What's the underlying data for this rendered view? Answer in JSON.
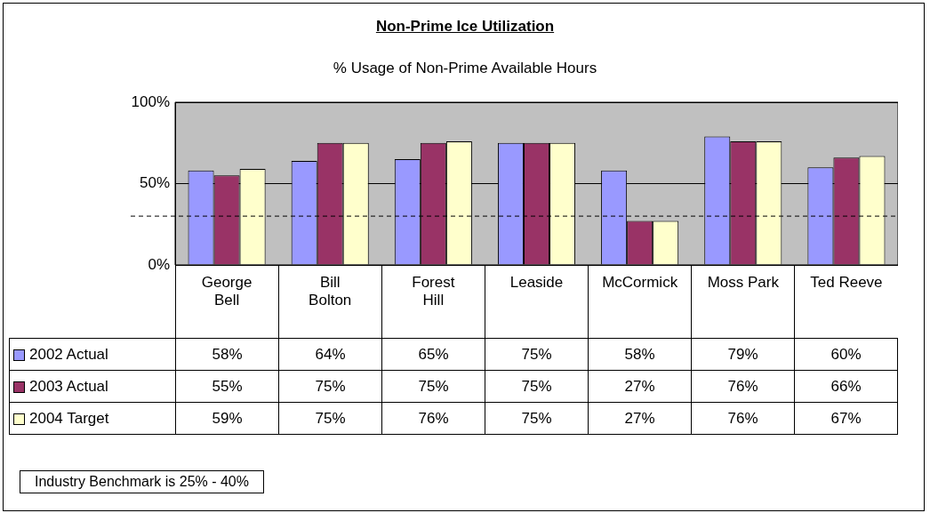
{
  "chart_data": {
    "type": "bar",
    "title": "Non-Prime Ice Utilization",
    "subtitle": "% Usage of Non-Prime Available Hours",
    "categories": [
      "George Bell",
      "Bill Bolton",
      "Forest Hill",
      "Leaside",
      "McCormick",
      "Moss Park",
      "Ted Reeve"
    ],
    "series": [
      {
        "name": "2002 Actual",
        "color": "#9999ff",
        "values": [
          58,
          64,
          65,
          75,
          58,
          79,
          60
        ],
        "value_labels": [
          "58%",
          "64%",
          "65%",
          "75%",
          "58%",
          "79%",
          "60%"
        ]
      },
      {
        "name": "2003 Actual",
        "color": "#993366",
        "values": [
          55,
          75,
          75,
          75,
          27,
          76,
          66
        ],
        "value_labels": [
          "55%",
          "75%",
          "75%",
          "75%",
          "27%",
          "76%",
          "66%"
        ]
      },
      {
        "name": "2004 Target",
        "color": "#ffffcc",
        "values": [
          59,
          75,
          76,
          75,
          27,
          76,
          67
        ],
        "value_labels": [
          "59%",
          "75%",
          "76%",
          "75%",
          "27%",
          "76%",
          "67%"
        ]
      }
    ],
    "ylim": [
      0,
      100
    ],
    "yticks": [
      {
        "value": 0,
        "label": "0%"
      },
      {
        "value": 50,
        "label": "50%"
      },
      {
        "value": 100,
        "label": "100%"
      }
    ],
    "grid": "y",
    "legend": "bottom",
    "ref_lines": [
      {
        "axis": "y",
        "value": 30,
        "line_style": "dashed"
      }
    ],
    "annotations": [
      "Industry Benchmark is 25% - 40%"
    ]
  }
}
